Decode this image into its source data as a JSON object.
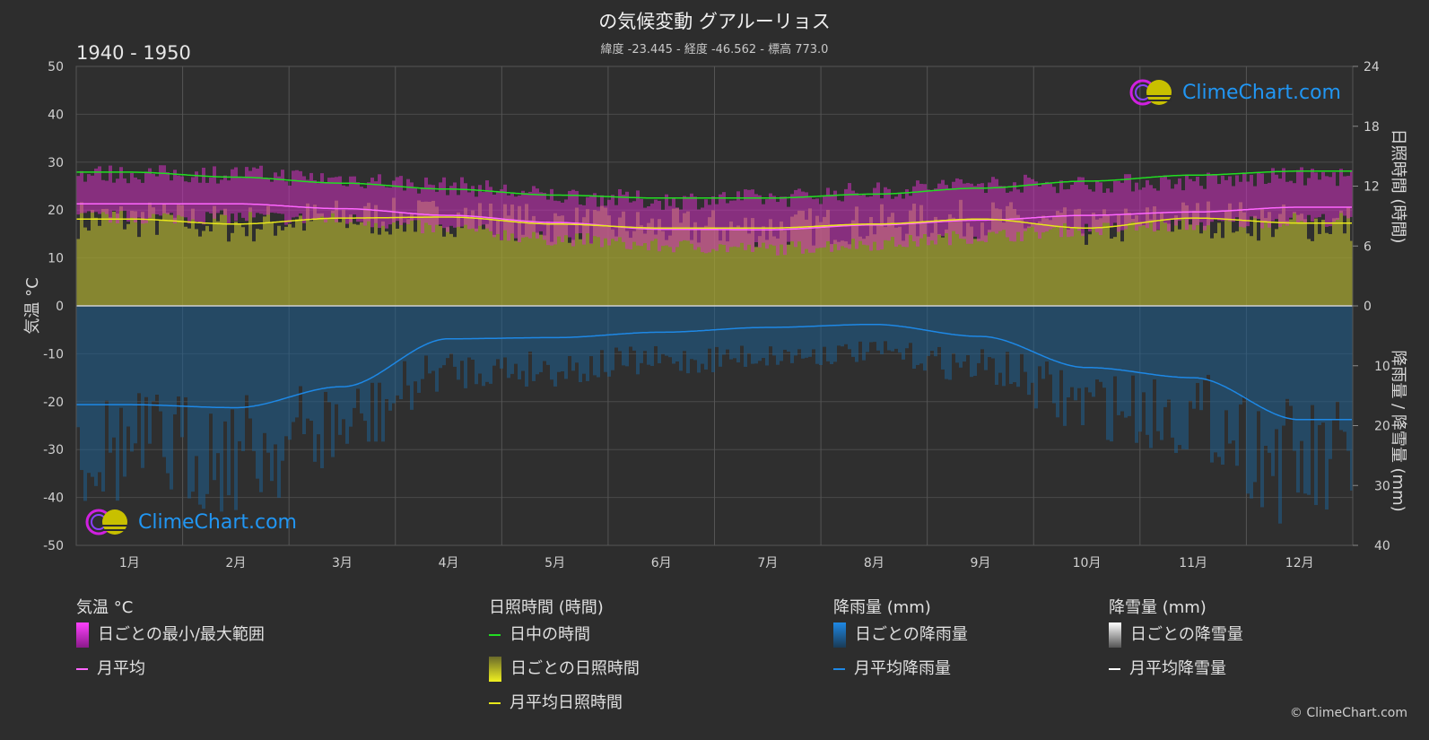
{
  "title": "の気候変動 グアルーリョス",
  "subtitle": "緯度 -23.445 - 経度 -46.562 - 標高 773.0",
  "period": "1940 - 1950",
  "copyright": "© ClimeChart.com",
  "logo_text": "ClimeChart.com",
  "colors": {
    "background": "#2d2d2d",
    "daylight": "#22dd22",
    "sunshine_avg": "#e8e81a",
    "sunshine_fill": "#a8a830",
    "temp_avg": "#ff66ff",
    "temp_range": "#d030c0",
    "rain": "#1e88e5",
    "rain_fill": "#1e5f8f",
    "snow": "#ffffff"
  },
  "legend": {
    "temp": {
      "header": "気温 °C",
      "range": "日ごとの最小/最大範囲",
      "avg": "月平均"
    },
    "sun": {
      "header": "日照時間 (時間)",
      "daylight": "日中の時間",
      "daily": "日ごとの日照時間",
      "avg": "月平均日照時間"
    },
    "rain": {
      "header": "降雨量 (mm)",
      "daily": "日ごとの降雨量",
      "avg": "月平均降雨量"
    },
    "snow": {
      "header": "降雪量 (mm)",
      "daily": "日ごとの降雪量",
      "avg": "月平均降雪量"
    }
  },
  "chart_data": {
    "type": "line",
    "months": [
      "1月",
      "2月",
      "3月",
      "4月",
      "5月",
      "6月",
      "7月",
      "8月",
      "9月",
      "10月",
      "11月",
      "12月"
    ],
    "y_left": {
      "label": "気温 °C",
      "range": [
        -50,
        50
      ],
      "ticks": [
        50,
        40,
        30,
        20,
        10,
        0,
        -10,
        -20,
        -30,
        -40,
        -50
      ]
    },
    "y_right_top": {
      "label": "日照時間 (時間)",
      "range": [
        0,
        24
      ],
      "ticks": [
        24,
        18,
        12,
        6,
        0
      ]
    },
    "y_right_bottom": {
      "label": "降雨量 / 降雪量 (mm)",
      "range": [
        0,
        40
      ],
      "ticks": [
        0,
        10,
        20,
        30,
        40
      ]
    },
    "series": [
      {
        "name": "日中の時間",
        "unit": "hours",
        "values": [
          13.4,
          12.9,
          12.3,
          11.7,
          11.1,
          10.8,
          10.8,
          11.2,
          11.8,
          12.5,
          13.1,
          13.5
        ]
      },
      {
        "name": "月平均日照時間",
        "unit": "hours",
        "values": [
          8.7,
          8.2,
          8.8,
          8.9,
          8.2,
          7.8,
          7.8,
          8.2,
          8.7,
          7.8,
          8.8,
          8.3
        ]
      },
      {
        "name": "月平均",
        "unit": "°C",
        "values": [
          21.3,
          21.3,
          20.3,
          18.9,
          17.4,
          16.0,
          15.9,
          16.9,
          17.9,
          18.9,
          19.6,
          20.6
        ]
      },
      {
        "name": "月平均降雨量",
        "unit": "mm",
        "values": [
          16.5,
          17.0,
          13.5,
          5.5,
          5.3,
          4.4,
          3.6,
          3.1,
          5.1,
          10.3,
          12.0,
          19.0
        ]
      },
      {
        "name": "月平均降雪量",
        "unit": "mm",
        "values": [
          0,
          0,
          0,
          0,
          0,
          0,
          0,
          0,
          0,
          0,
          0,
          0
        ]
      }
    ],
    "temp_daily_range": {
      "min": [
        18.5,
        18.5,
        18.0,
        16.0,
        14.0,
        12.5,
        12.0,
        13.0,
        14.5,
        16.0,
        17.0,
        18.0
      ],
      "max": [
        27.5,
        27.5,
        26.5,
        25.0,
        23.0,
        22.0,
        22.5,
        24.0,
        25.5,
        25.5,
        26.0,
        27.0
      ]
    },
    "grid": true
  }
}
